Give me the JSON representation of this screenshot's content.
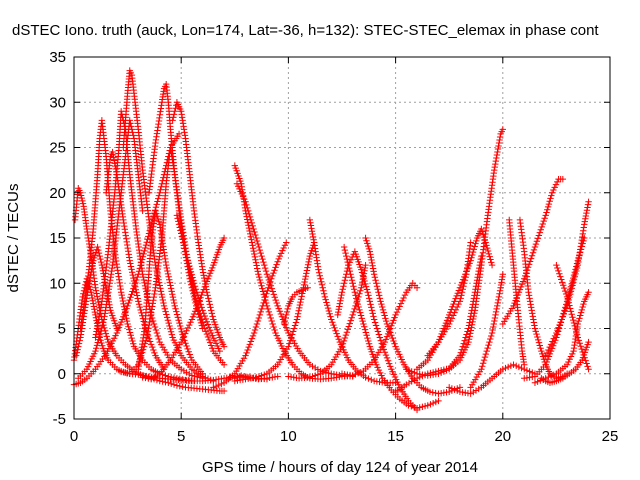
{
  "chart_data": {
    "type": "scatter",
    "title": "dSTEC Iono. truth (auck, Lon=174, Lat=-36, h=132): STEC-STEC_elemax in phase cont",
    "xlabel": "GPS time / hours of day 124 of year 2014",
    "ylabel": "dSTEC  / TECUs",
    "xlim": [
      0,
      25
    ],
    "ylim": [
      -5,
      35
    ],
    "xticks": [
      0,
      5,
      10,
      15,
      20,
      25
    ],
    "yticks": [
      -5,
      0,
      5,
      10,
      15,
      20,
      25,
      30,
      35
    ],
    "grid": true,
    "legend": "none",
    "marker": "+",
    "color": "#ff0000",
    "series": [
      {
        "x": [
          0.0,
          0.3,
          0.6,
          1.0,
          1.5,
          2.0,
          2.5,
          3.0,
          3.5,
          4.0,
          4.5,
          4.9
        ],
        "y": [
          -1.2,
          -1.0,
          -0.5,
          0.5,
          2.2,
          4.5,
          7.5,
          11.0,
          15.5,
          20.0,
          25.0,
          26.5
        ]
      },
      {
        "x": [
          0.05,
          0.2,
          0.3,
          0.45,
          0.6,
          0.8,
          1.0,
          1.3,
          1.6,
          2.0,
          2.4,
          2.8,
          3.2,
          3.6,
          4.0,
          4.4,
          4.8,
          5.2,
          5.6,
          6.0,
          6.4,
          6.8,
          7.0
        ],
        "y": [
          17.0,
          20.5,
          20.0,
          18.5,
          16.0,
          13.0,
          9.5,
          6.0,
          3.5,
          2.0,
          1.0,
          0.3,
          -0.2,
          -0.5,
          -0.8,
          -1.0,
          -1.3,
          -1.5,
          -1.6,
          -1.7,
          -1.8,
          -1.9,
          -1.9
        ]
      },
      {
        "x": [
          0.0,
          0.2,
          0.4,
          0.6,
          0.8,
          1.0,
          1.2,
          1.4,
          1.6,
          1.8,
          2.0,
          2.3,
          2.6,
          3.0,
          3.5,
          4.0,
          4.5,
          5.0,
          5.5,
          6.0,
          6.5,
          7.0,
          7.5,
          8.0,
          8.5,
          9.0
        ],
        "y": [
          1.5,
          5.0,
          8.5,
          10.5,
          9.0,
          6.5,
          4.0,
          2.5,
          1.5,
          1.0,
          0.5,
          0.2,
          0.0,
          -0.1,
          -0.3,
          -0.5,
          -0.6,
          -0.7,
          -0.8,
          -0.8,
          -0.7,
          -0.5,
          -0.3,
          -0.4,
          -0.5,
          -0.6
        ]
      },
      {
        "x": [
          0.1,
          0.3,
          0.5,
          0.7,
          0.9,
          1.1,
          1.3,
          1.5,
          1.7,
          2.0
        ],
        "y": [
          2.0,
          4.0,
          7.0,
          10.0,
          12.5,
          14.0,
          12.0,
          9.5,
          7.0,
          5.0
        ]
      },
      {
        "x": [
          0.3,
          0.5,
          0.7,
          0.9,
          1.1,
          1.2,
          1.3,
          1.5,
          1.7,
          1.9,
          2.2,
          2.5,
          2.8,
          3.2,
          3.6,
          4.0,
          4.4,
          4.8,
          5.2,
          5.6
        ],
        "y": [
          5.0,
          8.0,
          11.5,
          16.0,
          22.0,
          26.0,
          28.0,
          24.0,
          18.0,
          13.5,
          9.0,
          5.5,
          3.0,
          1.5,
          0.5,
          0.0,
          -0.3,
          -0.5,
          -0.7,
          -0.8
        ]
      },
      {
        "x": [
          0.2,
          0.6,
          1.0,
          1.4,
          1.8,
          2.1,
          2.4,
          2.6,
          2.8,
          3.0,
          3.2
        ],
        "y": [
          -0.5,
          0.5,
          2.5,
          6.0,
          12.0,
          18.0,
          24.0,
          28.0,
          26.0,
          22.0,
          18.0
        ]
      },
      {
        "x": [
          1.0,
          1.3,
          1.6,
          1.9,
          2.1,
          2.2,
          2.4,
          2.6,
          2.9,
          3.2,
          3.6,
          4.0,
          4.5,
          5.0,
          5.5,
          6.0
        ],
        "y": [
          4.0,
          8.0,
          13.5,
          20.0,
          25.0,
          29.0,
          27.0,
          22.0,
          16.0,
          11.0,
          6.5,
          3.5,
          1.5,
          0.5,
          -0.2,
          -0.5
        ]
      },
      {
        "x": [
          1.5,
          1.7,
          1.8,
          2.0,
          2.3,
          2.6,
          3.0,
          3.4,
          3.8,
          4.2
        ],
        "y": [
          20.0,
          24.0,
          24.5,
          22.0,
          17.0,
          12.5,
          8.0,
          4.5,
          2.0,
          0.5
        ]
      },
      {
        "x": [
          2.3,
          2.5,
          2.6,
          2.7,
          2.8,
          3.0,
          3.2,
          3.5,
          3.8,
          4.2,
          4.6,
          5.0,
          5.5,
          6.0,
          6.5
        ],
        "y": [
          25.0,
          31.0,
          33.5,
          33.0,
          31.0,
          27.0,
          22.5,
          17.0,
          12.0,
          7.5,
          4.0,
          2.0,
          0.5,
          -0.3,
          -0.8
        ]
      },
      {
        "x": [
          2.2,
          2.6,
          3.0,
          3.4,
          3.8,
          4.1,
          4.3,
          4.5,
          4.7,
          5.0,
          5.3,
          5.7,
          6.1,
          6.5,
          7.0
        ],
        "y": [
          0.2,
          0.0,
          1.0,
          4.0,
          9.5,
          15.0,
          21.0,
          25.0,
          22.0,
          17.0,
          12.5,
          8.0,
          5.0,
          2.5,
          1.0
        ]
      },
      {
        "x": [
          3.0,
          3.3,
          3.6,
          3.8,
          4.0,
          4.3,
          4.7,
          5.1,
          5.5,
          6.0
        ],
        "y": [
          0.5,
          5.0,
          14.5,
          18.0,
          16.5,
          12.0,
          7.5,
          4.0,
          1.5,
          0.0
        ]
      },
      {
        "x": [
          3.5,
          3.8,
          4.1,
          4.2,
          4.3,
          4.4,
          4.5,
          4.7,
          4.9,
          5.1,
          5.4,
          5.7,
          6.0
        ],
        "y": [
          20.0,
          25.5,
          30.0,
          31.5,
          32.0,
          30.0,
          27.0,
          22.0,
          18.0,
          14.5,
          10.5,
          7.5,
          5.0
        ]
      },
      {
        "x": [
          4.6,
          4.8,
          5.0,
          5.2,
          5.4,
          5.6,
          5.8,
          6.0,
          6.2,
          6.5,
          6.8,
          7.0
        ],
        "y": [
          28.0,
          30.0,
          29.0,
          26.0,
          22.0,
          18.0,
          14.5,
          11.5,
          9.0,
          6.0,
          4.0,
          3.0
        ]
      },
      {
        "x": [
          3.2,
          3.6,
          4.0,
          4.5,
          5.0,
          5.5,
          6.0,
          6.5,
          6.8,
          7.0
        ],
        "y": [
          -0.4,
          -0.6,
          0.0,
          1.5,
          3.5,
          6.0,
          9.0,
          12.0,
          14.0,
          15.0
        ]
      },
      {
        "x": [
          4.8,
          5.2,
          5.6,
          6.0,
          6.4,
          6.8
        ],
        "y": [
          17.5,
          13.5,
          10.0,
          7.0,
          4.5,
          2.5
        ]
      },
      {
        "x": [
          7.5,
          7.8,
          8.0,
          8.3,
          8.6,
          9.0,
          9.4,
          9.8,
          10.2,
          10.6,
          11.0,
          11.5,
          12.0,
          12.5,
          13.0
        ],
        "y": [
          23.0,
          21.0,
          18.0,
          14.5,
          11.0,
          7.5,
          4.5,
          2.5,
          1.0,
          0.0,
          -0.5,
          -0.6,
          -0.5,
          -0.3,
          -0.2
        ]
      },
      {
        "x": [
          6.5,
          7.0,
          7.5,
          8.0,
          8.4,
          8.8,
          9.2,
          9.6,
          9.9
        ],
        "y": [
          -1.5,
          -1.0,
          0.0,
          2.0,
          4.5,
          7.5,
          10.5,
          13.0,
          14.5
        ]
      },
      {
        "x": [
          7.6,
          8.0,
          8.5,
          9.0,
          9.5,
          10.0,
          10.5,
          11.0,
          11.5,
          12.0,
          12.5,
          13.0
        ],
        "y": [
          21.0,
          19.0,
          15.0,
          11.0,
          7.5,
          4.5,
          2.5,
          1.0,
          0.3,
          0.0,
          -0.2,
          -0.3
        ]
      },
      {
        "x": [
          7.5,
          7.8,
          8.2,
          8.6,
          9.0,
          9.5
        ],
        "y": [
          -0.5,
          -0.2,
          -0.4,
          -0.6,
          -0.5,
          -0.3
        ]
      },
      {
        "x": [
          7.5,
          8.0,
          8.5,
          9.0,
          9.5,
          10.0,
          10.4,
          10.7,
          11.0,
          11.2
        ],
        "y": [
          -0.8,
          -0.6,
          -0.4,
          0.0,
          1.0,
          3.0,
          6.0,
          9.5,
          13.0,
          14.5
        ]
      },
      {
        "x": [
          9.8,
          10.0,
          10.2,
          10.4,
          10.6,
          10.9
        ],
        "y": [
          5.5,
          7.5,
          8.5,
          9.0,
          9.2,
          9.5
        ]
      },
      {
        "x": [
          11.0,
          11.2,
          11.4,
          11.7,
          12.0,
          12.4,
          12.8,
          13.2,
          13.6,
          14.0,
          14.5,
          15.0
        ],
        "y": [
          17.0,
          14.5,
          11.5,
          8.5,
          6.0,
          3.5,
          1.5,
          0.3,
          -0.4,
          -0.8,
          -1.0,
          -1.0
        ]
      },
      {
        "x": [
          10.0,
          10.5,
          11.0,
          11.5,
          12.0,
          12.5,
          13.0,
          13.4,
          13.6
        ],
        "y": [
          -0.3,
          -0.5,
          -0.4,
          0.0,
          1.0,
          3.0,
          6.5,
          9.5,
          12.0
        ]
      },
      {
        "x": [
          12.6,
          12.9,
          13.2,
          13.5,
          13.8,
          14.1,
          14.4,
          14.8,
          15.2,
          15.6,
          16.0,
          16.5,
          17.0
        ],
        "y": [
          14.0,
          11.0,
          8.0,
          5.5,
          3.0,
          1.0,
          -0.5,
          -1.8,
          -2.8,
          -3.5,
          -3.8,
          -3.5,
          -3.0
        ]
      },
      {
        "x": [
          12.3,
          12.5,
          12.8,
          13.1,
          13.4,
          13.7,
          14.0,
          14.4,
          14.8,
          15.2,
          15.6,
          16.0
        ],
        "y": [
          6.5,
          9.0,
          12.0,
          13.5,
          11.5,
          9.0,
          6.0,
          3.0,
          0.5,
          -1.5,
          -3.0,
          -4.0
        ]
      },
      {
        "x": [
          13.6,
          13.8,
          14.0,
          14.3,
          14.6,
          15.0,
          15.4,
          15.8,
          16.2,
          16.6,
          17.0,
          17.5,
          18.0
        ],
        "y": [
          15.0,
          13.5,
          11.0,
          8.0,
          5.5,
          3.0,
          1.0,
          -0.5,
          -1.5,
          -2.0,
          -2.2,
          -2.0,
          -1.5
        ]
      },
      {
        "x": [
          12.5,
          13.0,
          13.5,
          14.0,
          14.5,
          15.0,
          15.5,
          15.8,
          16.0
        ],
        "y": [
          0.0,
          -0.2,
          0.3,
          1.5,
          3.5,
          6.5,
          9.0,
          10.0,
          9.5
        ]
      },
      {
        "x": [
          15.0,
          15.5,
          16.0,
          16.5,
          17.0,
          17.5,
          18.0,
          18.4,
          18.7,
          19.0
        ],
        "y": [
          -2.0,
          -1.2,
          -0.5,
          0.0,
          0.3,
          0.6,
          2.0,
          5.0,
          9.0,
          13.0
        ]
      },
      {
        "x": [
          15.5,
          16.0,
          16.5,
          17.0,
          17.5,
          18.0,
          18.4,
          18.7,
          19.0,
          19.3,
          19.6,
          19.9,
          20.0
        ],
        "y": [
          0.5,
          0.0,
          -0.2,
          0.0,
          0.5,
          1.5,
          3.5,
          7.0,
          12.0,
          17.5,
          22.5,
          26.5,
          27.0
        ]
      },
      {
        "x": [
          16.0,
          16.5,
          17.0,
          17.5,
          18.0,
          18.5,
          18.8,
          19.0,
          19.2,
          19.5
        ],
        "y": [
          0.5,
          1.5,
          3.5,
          6.5,
          9.5,
          12.5,
          15.0,
          16.0,
          14.5,
          12.0
        ]
      },
      {
        "x": [
          16.5,
          17.0,
          17.5,
          18.0,
          18.3,
          18.5
        ],
        "y": [
          2.0,
          3.5,
          5.5,
          8.0,
          11.0,
          14.5
        ]
      },
      {
        "x": [
          17.5,
          18.0,
          18.5,
          19.0,
          19.5,
          20.0,
          20.5,
          21.0,
          21.5
        ],
        "y": [
          -1.5,
          -2.0,
          -2.2,
          -1.5,
          -0.5,
          0.5,
          1.0,
          0.5,
          0.0
        ]
      },
      {
        "x": [
          18.5,
          19.0,
          19.5,
          19.9,
          20.0
        ],
        "y": [
          -1.5,
          0.5,
          4.5,
          9.5,
          11.0
        ]
      },
      {
        "x": [
          20.3,
          20.5,
          20.7,
          20.9,
          21.0
        ],
        "y": [
          17.0,
          12.0,
          7.0,
          2.5,
          1.0
        ]
      },
      {
        "x": [
          20.8,
          21.0,
          21.2,
          21.5,
          21.8,
          22.0,
          22.2,
          22.5,
          22.8,
          23.0
        ],
        "y": [
          17.0,
          13.5,
          9.0,
          5.0,
          2.5,
          1.0,
          0.0,
          -0.5,
          -0.3,
          0.0
        ]
      },
      {
        "x": [
          20.0,
          20.5,
          21.0,
          21.5,
          22.0,
          22.3,
          22.6,
          22.8
        ],
        "y": [
          5.5,
          7.5,
          10.5,
          14.0,
          17.5,
          20.0,
          21.5,
          21.5
        ]
      },
      {
        "x": [
          21.0,
          21.5,
          22.0,
          22.5,
          23.0,
          23.5,
          23.8
        ],
        "y": [
          -0.5,
          -0.3,
          1.0,
          4.0,
          8.0,
          12.5,
          15.0
        ]
      },
      {
        "x": [
          22.0,
          22.5,
          23.0,
          23.5,
          23.8,
          24.0
        ],
        "y": [
          2.0,
          4.5,
          7.5,
          12.0,
          16.5,
          19.0
        ]
      },
      {
        "x": [
          21.5,
          22.0,
          22.5,
          23.0,
          23.3,
          23.5,
          23.8,
          24.0
        ],
        "y": [
          -1.0,
          -0.5,
          0.0,
          1.0,
          2.5,
          5.5,
          8.0,
          9.0
        ]
      },
      {
        "x": [
          22.5,
          23.0,
          23.5,
          24.0
        ],
        "y": [
          12.0,
          8.5,
          4.0,
          0.5
        ]
      },
      {
        "x": [
          21.8,
          22.0,
          22.2,
          22.5,
          22.8,
          23.1,
          23.4,
          23.7,
          24.0
        ],
        "y": [
          -0.5,
          -0.8,
          -1.0,
          -0.8,
          -0.5,
          0.0,
          0.5,
          1.5,
          3.5
        ]
      }
    ]
  }
}
